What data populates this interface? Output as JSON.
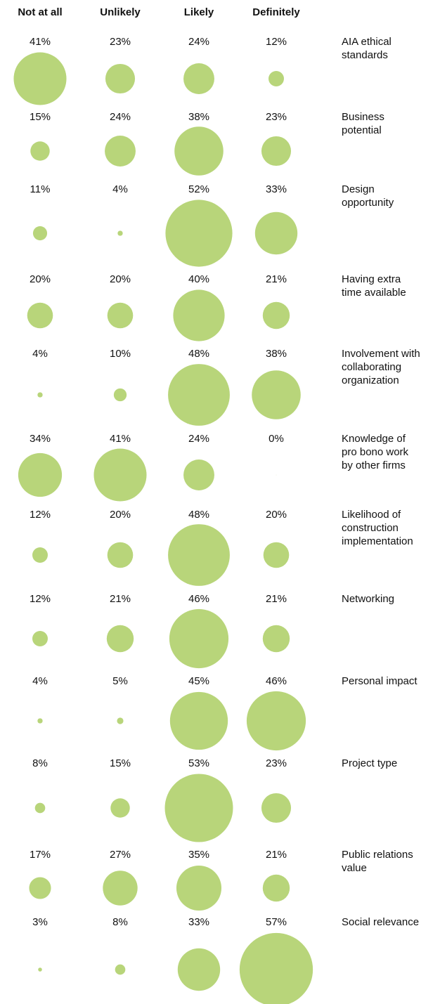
{
  "chart_data": {
    "type": "bubble-grid",
    "color": "#b8d57a",
    "columns": [
      "Not at all",
      "Unlikely",
      "Likely",
      "Definitely"
    ],
    "rows": [
      {
        "label": [
          "AIA ethical",
          "standards"
        ],
        "values": [
          41,
          23,
          24,
          12
        ],
        "value_labels": [
          "41%",
          "23%",
          "24%",
          "12%"
        ]
      },
      {
        "label": [
          "Business",
          "potential"
        ],
        "values": [
          15,
          24,
          38,
          23
        ],
        "value_labels": [
          "15%",
          "24%",
          "38%",
          "23%"
        ]
      },
      {
        "label": [
          "Design",
          "opportunity"
        ],
        "values": [
          11,
          4,
          52,
          33
        ],
        "value_labels": [
          "11%",
          "4%",
          "52%",
          "33%"
        ]
      },
      {
        "label": [
          "Having extra",
          "time available"
        ],
        "values": [
          20,
          20,
          40,
          21
        ],
        "value_labels": [
          "20%",
          "20%",
          "40%",
          "21%"
        ]
      },
      {
        "label": [
          "Involvement with",
          "collaborating",
          "organization"
        ],
        "values": [
          4,
          10,
          48,
          38
        ],
        "value_labels": [
          "4%",
          "10%",
          "48%",
          "38%"
        ]
      },
      {
        "label": [
          "Knowledge of",
          "pro bono work",
          "by other firms"
        ],
        "values": [
          34,
          41,
          24,
          0
        ],
        "value_labels": [
          "34%",
          "41%",
          "24%",
          "0%"
        ]
      },
      {
        "label": [
          "Likelihood of",
          "construction",
          "implementation"
        ],
        "values": [
          12,
          20,
          48,
          20
        ],
        "value_labels": [
          "12%",
          "20%",
          "48%",
          "20%"
        ]
      },
      {
        "label": [
          "Networking"
        ],
        "values": [
          12,
          21,
          46,
          21
        ],
        "value_labels": [
          "12%",
          "21%",
          "46%",
          "21%"
        ]
      },
      {
        "label": [
          "Personal impact"
        ],
        "values": [
          4,
          5,
          45,
          46
        ],
        "value_labels": [
          "4%",
          "5%",
          "45%",
          "46%"
        ]
      },
      {
        "label": [
          "Project type"
        ],
        "values": [
          8,
          15,
          53,
          23
        ],
        "value_labels": [
          "8%",
          "15%",
          "53%",
          "23%"
        ]
      },
      {
        "label": [
          "Public relations",
          "value"
        ],
        "values": [
          17,
          27,
          35,
          21
        ],
        "value_labels": [
          "17%",
          "27%",
          "35%",
          "21%"
        ]
      },
      {
        "label": [
          "Social relevance"
        ],
        "values": [
          3,
          8,
          33,
          57
        ],
        "value_labels": [
          "3%",
          "8%",
          "33%",
          "57%"
        ]
      }
    ]
  }
}
